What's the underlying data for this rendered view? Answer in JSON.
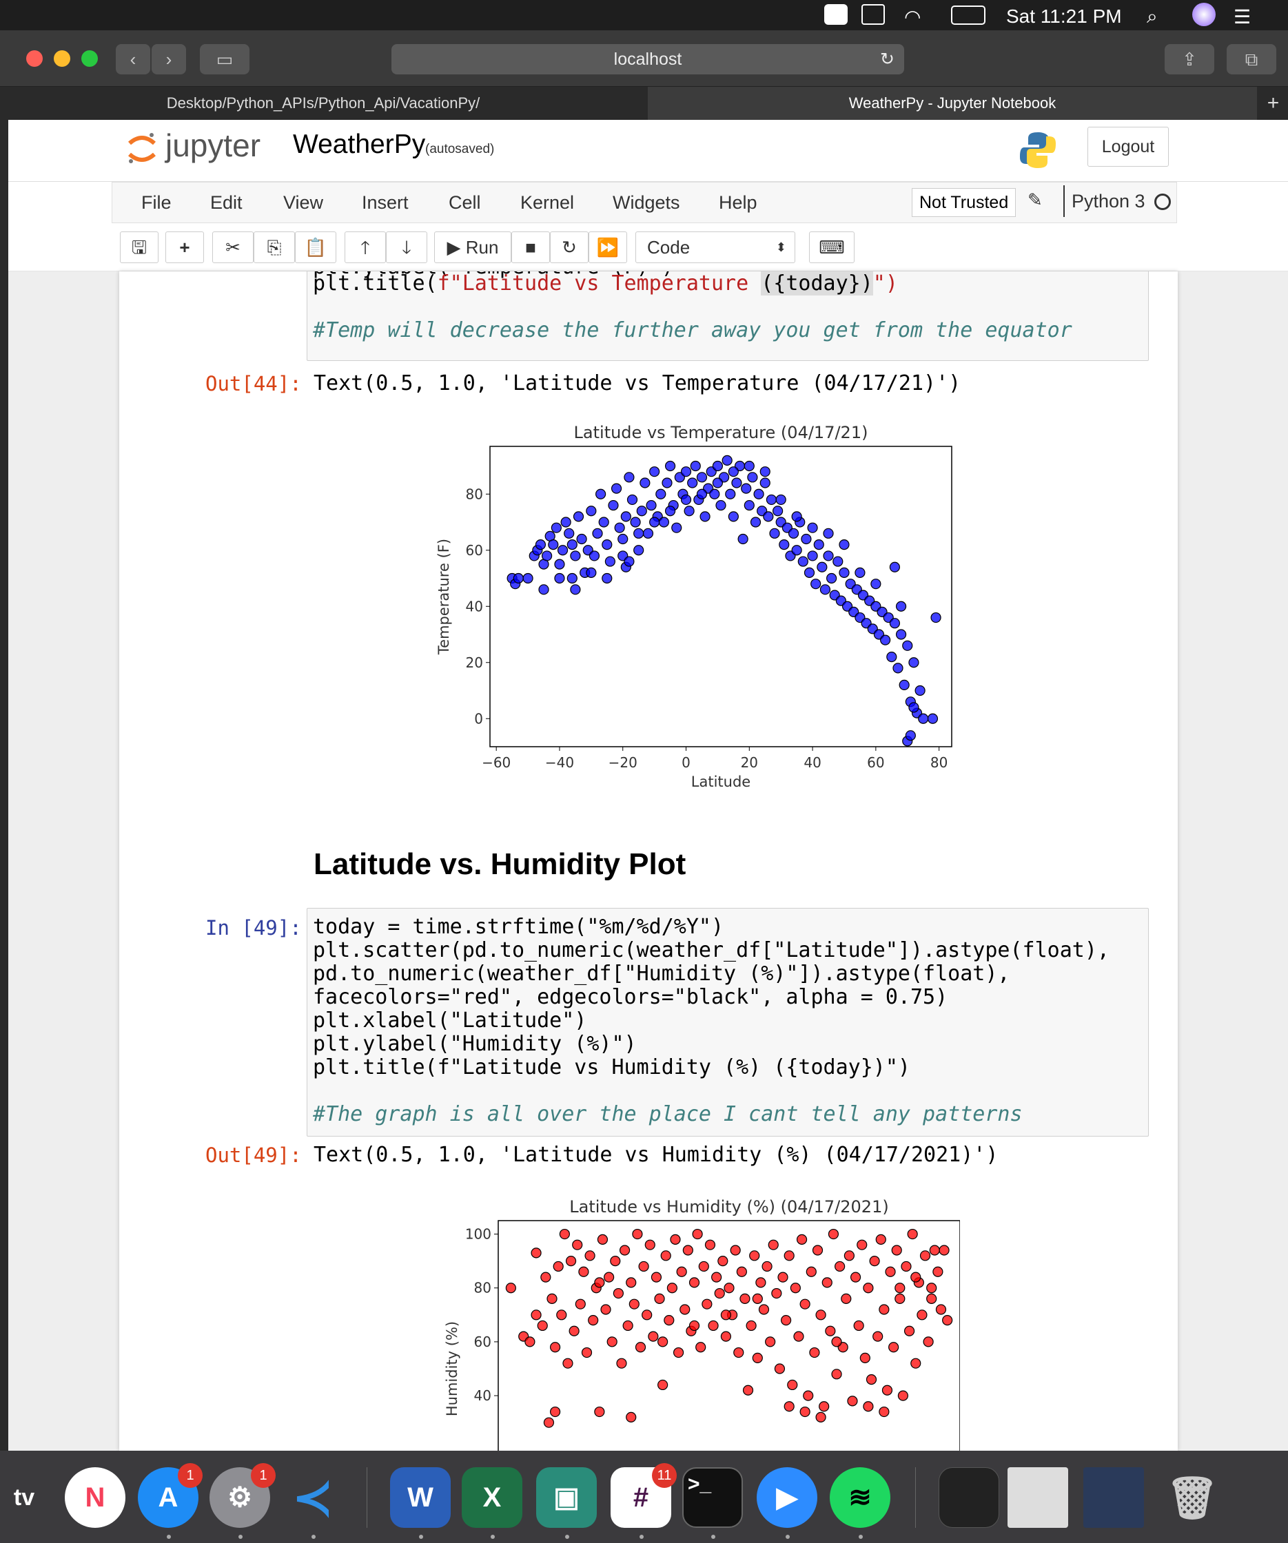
{
  "menubar": {
    "clock": "Sat 11:21 PM"
  },
  "browser": {
    "url": "localhost",
    "tabs": [
      {
        "label": "Desktop/Python_APIs/Python_Api/VacationPy/"
      },
      {
        "label": "WeatherPy - Jupyter Notebook"
      }
    ]
  },
  "jupyter": {
    "logo_text": "jupyter",
    "notebook_name": "WeatherPy",
    "save_status": "(autosaved)",
    "logout": "Logout",
    "menu": [
      "File",
      "Edit",
      "View",
      "Insert",
      "Cell",
      "Kernel",
      "Widgets",
      "Help"
    ],
    "trust": "Not Trusted",
    "kernel": "Python 3",
    "run_label": "Run",
    "cell_type": "Code"
  },
  "cells": {
    "cell44": {
      "partial_line": "plt.ylabel(\"Temperature (F)\")",
      "title_line_prefix": "plt.title(",
      "title_line_str": "f\"Latitude vs Temperature ",
      "title_line_fmt": "({today})",
      "title_line_end": "\")",
      "comment": "#Temp will decrease the further away you get from the equator",
      "out_prompt": "Out[44]:",
      "out_text": "Text(0.5, 1.0, 'Latitude vs Temperature (04/17/21)')"
    },
    "heading": "Latitude vs. Humidity Plot",
    "cell49": {
      "in_prompt": "In [49]:",
      "lines": [
        "today = time.strftime(\"%m/%d/%Y\")",
        "plt.scatter(pd.to_numeric(weather_df[\"Latitude\"]).astype(float),",
        "pd.to_numeric(weather_df[\"Humidity (%)\"]).astype(float),",
        "facecolors=\"red\", edgecolors=\"black\", alpha = 0.75)",
        "plt.xlabel(\"Latitude\")",
        "plt.ylabel(\"Humidity (%)\")",
        "plt.title(f\"Latitude vs Humidity (%) ({today})\")"
      ],
      "comment": "#The graph is all over the place I cant tell any patterns",
      "out_prompt": "Out[49]:",
      "out_text": "Text(0.5, 1.0, 'Latitude vs Humidity (%) (04/17/2021)')"
    }
  },
  "dock": {
    "apps": [
      "TV",
      "News",
      "App Store",
      "System Preferences",
      "VS Code",
      "Word",
      "Excel",
      "Webex",
      "Slack",
      "Terminal",
      "Zoom",
      "Spotify",
      "Trash"
    ],
    "badges": {
      "app_store": "1",
      "system_prefs": "1",
      "slack": "11"
    },
    "tv_label": "tv"
  },
  "chart_data": [
    {
      "type": "scatter",
      "title": "Latitude vs Temperature (04/17/21)",
      "xlabel": "Latitude",
      "ylabel": "Temperature (F)",
      "xlim": [
        -62,
        84
      ],
      "ylim": [
        -10,
        97
      ],
      "xticks": [
        -60,
        -40,
        -20,
        0,
        20,
        40,
        60,
        80
      ],
      "yticks": [
        0,
        20,
        40,
        60,
        80
      ],
      "color": "#0000ff",
      "points": [
        [
          -55,
          50
        ],
        [
          -54,
          48
        ],
        [
          -53,
          50
        ],
        [
          -50,
          50
        ],
        [
          -48,
          58
        ],
        [
          -47,
          60
        ],
        [
          -46,
          62
        ],
        [
          -45,
          55
        ],
        [
          -44,
          58
        ],
        [
          -43,
          65
        ],
        [
          -42,
          62
        ],
        [
          -41,
          68
        ],
        [
          -40,
          55
        ],
        [
          -39,
          60
        ],
        [
          -38,
          70
        ],
        [
          -37,
          66
        ],
        [
          -36,
          62
        ],
        [
          -35,
          58
        ],
        [
          -34,
          72
        ],
        [
          -33,
          64
        ],
        [
          -32,
          52
        ],
        [
          -31,
          60
        ],
        [
          -30,
          74
        ],
        [
          -29,
          58
        ],
        [
          -28,
          66
        ],
        [
          -27,
          80
        ],
        [
          -26,
          70
        ],
        [
          -25,
          62
        ],
        [
          -24,
          56
        ],
        [
          -23,
          76
        ],
        [
          -22,
          82
        ],
        [
          -21,
          68
        ],
        [
          -20,
          64
        ],
        [
          -19,
          72
        ],
        [
          -18,
          86
        ],
        [
          -17,
          78
        ],
        [
          -16,
          70
        ],
        [
          -15,
          60
        ],
        [
          -14,
          74
        ],
        [
          -13,
          84
        ],
        [
          -12,
          66
        ],
        [
          -11,
          76
        ],
        [
          -10,
          88
        ],
        [
          -9,
          72
        ],
        [
          -8,
          80
        ],
        [
          -7,
          70
        ],
        [
          -6,
          84
        ],
        [
          -5,
          90
        ],
        [
          -4,
          76
        ],
        [
          -3,
          68
        ],
        [
          -2,
          86
        ],
        [
          -1,
          80
        ],
        [
          0,
          88
        ],
        [
          1,
          74
        ],
        [
          2,
          84
        ],
        [
          3,
          90
        ],
        [
          4,
          78
        ],
        [
          5,
          86
        ],
        [
          6,
          72
        ],
        [
          7,
          82
        ],
        [
          8,
          88
        ],
        [
          9,
          80
        ],
        [
          10,
          90
        ],
        [
          11,
          76
        ],
        [
          12,
          86
        ],
        [
          13,
          92
        ],
        [
          14,
          80
        ],
        [
          15,
          72
        ],
        [
          16,
          84
        ],
        [
          17,
          90
        ],
        [
          18,
          64
        ],
        [
          19,
          82
        ],
        [
          20,
          76
        ],
        [
          21,
          86
        ],
        [
          22,
          70
        ],
        [
          23,
          80
        ],
        [
          24,
          74
        ],
        [
          25,
          84
        ],
        [
          26,
          72
        ],
        [
          27,
          78
        ],
        [
          28,
          66
        ],
        [
          29,
          74
        ],
        [
          30,
          70
        ],
        [
          31,
          62
        ],
        [
          32,
          68
        ],
        [
          33,
          58
        ],
        [
          34,
          66
        ],
        [
          35,
          60
        ],
        [
          36,
          70
        ],
        [
          37,
          56
        ],
        [
          38,
          64
        ],
        [
          39,
          52
        ],
        [
          40,
          58
        ],
        [
          41,
          48
        ],
        [
          42,
          62
        ],
        [
          43,
          54
        ],
        [
          44,
          46
        ],
        [
          45,
          58
        ],
        [
          46,
          50
        ],
        [
          47,
          44
        ],
        [
          48,
          56
        ],
        [
          49,
          42
        ],
        [
          50,
          52
        ],
        [
          51,
          40
        ],
        [
          52,
          48
        ],
        [
          53,
          38
        ],
        [
          54,
          46
        ],
        [
          55,
          36
        ],
        [
          56,
          44
        ],
        [
          57,
          34
        ],
        [
          58,
          42
        ],
        [
          59,
          32
        ],
        [
          60,
          40
        ],
        [
          61,
          30
        ],
        [
          62,
          38
        ],
        [
          63,
          28
        ],
        [
          64,
          36
        ],
        [
          65,
          22
        ],
        [
          66,
          34
        ],
        [
          67,
          18
        ],
        [
          68,
          30
        ],
        [
          69,
          12
        ],
        [
          70,
          26
        ],
        [
          71,
          6
        ],
        [
          72,
          20
        ],
        [
          73,
          2
        ],
        [
          74,
          10
        ],
        [
          70,
          -8
        ],
        [
          71,
          -6
        ],
        [
          72,
          4
        ],
        [
          75,
          0
        ],
        [
          78,
          0
        ],
        [
          79,
          36
        ],
        [
          68,
          40
        ],
        [
          66,
          54
        ],
        [
          60,
          48
        ],
        [
          55,
          52
        ],
        [
          50,
          62
        ],
        [
          45,
          66
        ],
        [
          40,
          68
        ],
        [
          35,
          72
        ],
        [
          30,
          78
        ],
        [
          25,
          88
        ],
        [
          20,
          90
        ],
        [
          15,
          88
        ],
        [
          10,
          84
        ],
        [
          5,
          80
        ],
        [
          0,
          78
        ],
        [
          -5,
          74
        ],
        [
          -10,
          70
        ],
        [
          -15,
          66
        ],
        [
          -20,
          58
        ],
        [
          -25,
          50
        ],
        [
          -30,
          52
        ],
        [
          -35,
          46
        ],
        [
          -40,
          50
        ],
        [
          -45,
          46
        ],
        [
          -36,
          50
        ],
        [
          -19,
          54
        ],
        [
          -18,
          56
        ]
      ]
    },
    {
      "type": "scatter",
      "title": "Latitude vs Humidity (%) (04/17/2021)",
      "xlabel": "Latitude",
      "ylabel": "Humidity (%)",
      "xlim": [
        -62,
        84
      ],
      "ylim": [
        -5,
        105
      ],
      "yticks": [
        40,
        60,
        80,
        100
      ],
      "color": "#ff0000",
      "points": [
        [
          -58,
          80
        ],
        [
          -54,
          62
        ],
        [
          -52,
          60
        ],
        [
          -50,
          93
        ],
        [
          -48,
          66
        ],
        [
          -47,
          84
        ],
        [
          -45,
          76
        ],
        [
          -44,
          58
        ],
        [
          -43,
          88
        ],
        [
          -42,
          70
        ],
        [
          -41,
          100
        ],
        [
          -40,
          52
        ],
        [
          -39,
          90
        ],
        [
          -38,
          64
        ],
        [
          -37,
          96
        ],
        [
          -36,
          74
        ],
        [
          -35,
          86
        ],
        [
          -34,
          56
        ],
        [
          -33,
          92
        ],
        [
          -32,
          68
        ],
        [
          -31,
          80
        ],
        [
          -30,
          34
        ],
        [
          -29,
          98
        ],
        [
          -28,
          72
        ],
        [
          -27,
          84
        ],
        [
          -26,
          60
        ],
        [
          -25,
          90
        ],
        [
          -24,
          78
        ],
        [
          -23,
          52
        ],
        [
          -22,
          94
        ],
        [
          -21,
          66
        ],
        [
          -20,
          82
        ],
        [
          -19,
          74
        ],
        [
          -18,
          100
        ],
        [
          -17,
          58
        ],
        [
          -16,
          88
        ],
        [
          -15,
          70
        ],
        [
          -14,
          96
        ],
        [
          -13,
          62
        ],
        [
          -12,
          84
        ],
        [
          -11,
          76
        ],
        [
          -10,
          44
        ],
        [
          -9,
          92
        ],
        [
          -8,
          68
        ],
        [
          -7,
          80
        ],
        [
          -6,
          98
        ],
        [
          -5,
          56
        ],
        [
          -4,
          86
        ],
        [
          -3,
          72
        ],
        [
          -2,
          94
        ],
        [
          -1,
          64
        ],
        [
          0,
          82
        ],
        [
          1,
          100
        ],
        [
          2,
          58
        ],
        [
          3,
          88
        ],
        [
          4,
          74
        ],
        [
          5,
          96
        ],
        [
          6,
          66
        ],
        [
          7,
          84
        ],
        [
          8,
          78
        ],
        [
          9,
          90
        ],
        [
          10,
          62
        ],
        [
          11,
          80
        ],
        [
          12,
          70
        ],
        [
          13,
          94
        ],
        [
          14,
          56
        ],
        [
          15,
          86
        ],
        [
          16,
          76
        ],
        [
          17,
          42
        ],
        [
          18,
          66
        ],
        [
          19,
          92
        ],
        [
          20,
          54
        ],
        [
          21,
          82
        ],
        [
          22,
          72
        ],
        [
          23,
          88
        ],
        [
          24,
          60
        ],
        [
          25,
          96
        ],
        [
          26,
          78
        ],
        [
          27,
          50
        ],
        [
          28,
          84
        ],
        [
          29,
          68
        ],
        [
          30,
          92
        ],
        [
          31,
          44
        ],
        [
          32,
          80
        ],
        [
          33,
          62
        ],
        [
          34,
          98
        ],
        [
          35,
          74
        ],
        [
          36,
          40
        ],
        [
          37,
          86
        ],
        [
          38,
          56
        ],
        [
          39,
          94
        ],
        [
          40,
          70
        ],
        [
          41,
          36
        ],
        [
          42,
          82
        ],
        [
          43,
          64
        ],
        [
          44,
          100
        ],
        [
          45,
          48
        ],
        [
          46,
          88
        ],
        [
          47,
          58
        ],
        [
          48,
          76
        ],
        [
          49,
          92
        ],
        [
          50,
          38
        ],
        [
          51,
          84
        ],
        [
          52,
          66
        ],
        [
          53,
          96
        ],
        [
          54,
          54
        ],
        [
          55,
          80
        ],
        [
          56,
          46
        ],
        [
          57,
          90
        ],
        [
          58,
          62
        ],
        [
          59,
          98
        ],
        [
          60,
          72
        ],
        [
          61,
          42
        ],
        [
          62,
          86
        ],
        [
          63,
          58
        ],
        [
          64,
          94
        ],
        [
          65,
          76
        ],
        [
          66,
          40
        ],
        [
          67,
          88
        ],
        [
          68,
          64
        ],
        [
          69,
          100
        ],
        [
          70,
          52
        ],
        [
          71,
          82
        ],
        [
          72,
          70
        ],
        [
          73,
          92
        ],
        [
          74,
          60
        ],
        [
          75,
          80
        ],
        [
          76,
          94
        ],
        [
          77,
          86
        ],
        [
          78,
          72
        ],
        [
          79,
          94
        ],
        [
          80,
          68
        ],
        [
          -46,
          30
        ],
        [
          -44,
          34
        ],
        [
          -20,
          32
        ],
        [
          30,
          36
        ],
        [
          35,
          34
        ],
        [
          40,
          32
        ],
        [
          55,
          36
        ],
        [
          60,
          34
        ],
        [
          -50,
          70
        ],
        [
          -10,
          60
        ],
        [
          10,
          70
        ],
        [
          20,
          76
        ],
        [
          45,
          60
        ],
        [
          65,
          80
        ],
        [
          70,
          84
        ],
        [
          75,
          76
        ],
        [
          -30,
          82
        ],
        [
          0,
          66
        ]
      ]
    }
  ]
}
